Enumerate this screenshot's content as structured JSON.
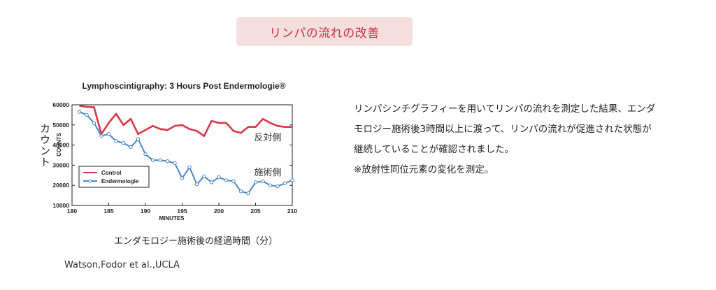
{
  "header": {
    "title": "リンパの流れの改善"
  },
  "chart_data": {
    "type": "line",
    "title": "Lymphoscintigraphy: 3 Hours Post Endermologie®",
    "xlabel": "MINUTES",
    "xlabel_jp": "エンダモロジー施術後の経過時間（分）",
    "ylabel": "COUNTS",
    "ylabel_jp": "カウント",
    "xlim": [
      180,
      210
    ],
    "ylim": [
      10000,
      60000
    ],
    "x_ticks": [
      180,
      185,
      190,
      195,
      200,
      205,
      210
    ],
    "x_tick_labels": [
      "180",
      "185",
      "190",
      "195",
      "200",
      "205",
      "210"
    ],
    "y_ticks": [
      10000,
      20000,
      30000,
      40000,
      50000,
      60000
    ],
    "y_tick_labels": [
      "10000",
      "20000",
      "30000",
      "40000",
      "50000",
      "60000"
    ],
    "legend": {
      "placement": "bottom-left"
    },
    "annotations": [
      {
        "text": "反対側",
        "series": "Control"
      },
      {
        "text": "施術側",
        "series": "Endermologie"
      }
    ],
    "series": [
      {
        "name": "Control",
        "color": "#d8384a",
        "x": [
          181,
          182,
          183,
          184,
          185,
          186,
          187,
          188,
          189,
          190,
          191,
          192,
          193,
          194,
          195,
          196,
          197,
          198,
          199,
          200,
          201,
          202,
          203,
          204,
          205,
          206,
          207,
          208,
          209,
          210
        ],
        "values": [
          59500,
          59000,
          58800,
          45500,
          51000,
          55500,
          50000,
          53000,
          45500,
          47500,
          49500,
          48000,
          47500,
          49500,
          50000,
          48000,
          47000,
          44500,
          52000,
          51000,
          51000,
          47000,
          46000,
          49000,
          49000,
          53000,
          51000,
          49500,
          49000,
          49000
        ]
      },
      {
        "name": "Endermologie",
        "color": "#4a86c8",
        "x": [
          181,
          182,
          183,
          184,
          185,
          186,
          187,
          188,
          189,
          190,
          191,
          192,
          193,
          194,
          195,
          196,
          197,
          198,
          199,
          200,
          201,
          202,
          203,
          204,
          205,
          206,
          207,
          208,
          209,
          210
        ],
        "values": [
          56500,
          55000,
          51000,
          44500,
          45500,
          42000,
          41000,
          39000,
          43000,
          35500,
          32500,
          32500,
          32000,
          31000,
          23500,
          29000,
          20500,
          24500,
          21500,
          24000,
          22500,
          22000,
          17000,
          16000,
          21500,
          22000,
          20000,
          19500,
          21000,
          22500
        ]
      }
    ]
  },
  "credit": "Watson,Fodor et al.,UCLA",
  "description": {
    "lines": [
      "リンパシンチグラフィーを用いてリンパの流れを測定した結果、エンダ",
      "モロジー施術後3時間以上に渡って、リンパの流れが促進された状態が",
      "継続していることが確認されました。",
      "※放射性同位元素の変化を測定。"
    ]
  }
}
